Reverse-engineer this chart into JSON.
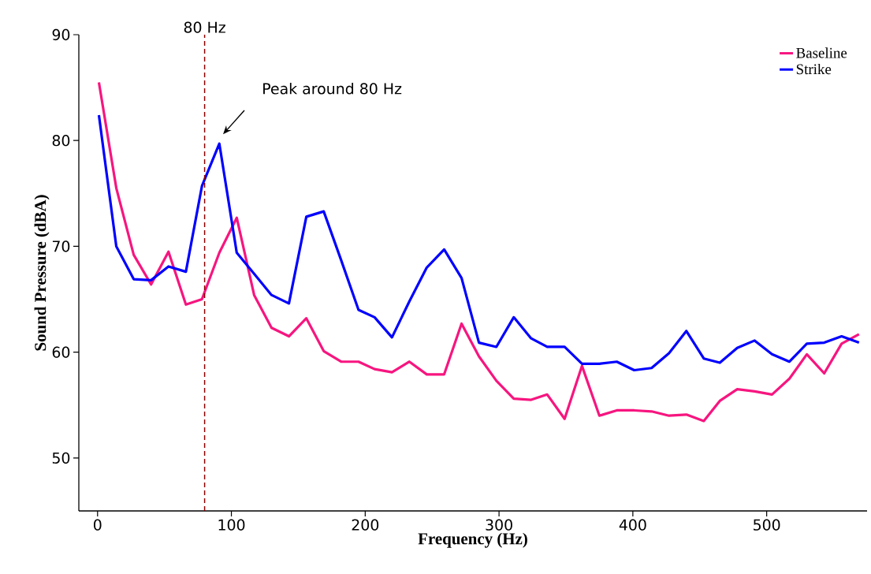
{
  "chart_data": {
    "type": "line",
    "xlabel": "Frequency (Hz)",
    "ylabel": "Sound Pressure (dBA)",
    "x": [
      1,
      14,
      27,
      40,
      53,
      66,
      78,
      91,
      104,
      117,
      130,
      143,
      156,
      169,
      182,
      195,
      207,
      220,
      233,
      246,
      259,
      272,
      285,
      298,
      311,
      324,
      336,
      349,
      362,
      375,
      388,
      401,
      414,
      427,
      440,
      453,
      465,
      478,
      491,
      504,
      517,
      530,
      543,
      556,
      569
    ],
    "series": [
      {
        "name": "Baseline",
        "color": "#f7157f",
        "values": [
          85.5,
          75.5,
          69.2,
          66.4,
          69.5,
          64.5,
          65.0,
          69.4,
          72.7,
          65.4,
          62.3,
          61.5,
          63.2,
          60.1,
          59.1,
          59.1,
          58.4,
          58.1,
          59.1,
          57.9,
          57.9,
          62.7,
          59.6,
          57.3,
          55.6,
          55.5,
          56.0,
          53.7,
          58.7,
          54.0,
          54.5,
          54.5,
          54.4,
          54.0,
          54.1,
          53.5,
          55.4,
          56.5,
          56.3,
          56.0,
          57.5,
          59.8,
          58.0,
          60.8,
          61.7
        ]
      },
      {
        "name": "Strike",
        "color": "#0000ff",
        "values": [
          82.4,
          70.0,
          66.9,
          66.8,
          68.1,
          67.6,
          75.7,
          79.7,
          69.4,
          67.4,
          65.4,
          64.6,
          72.8,
          73.3,
          68.7,
          64.0,
          63.3,
          61.4,
          64.8,
          68.0,
          69.7,
          67.0,
          60.9,
          60.5,
          63.3,
          61.3,
          60.5,
          60.5,
          58.9,
          58.9,
          59.1,
          58.3,
          58.5,
          59.9,
          62.0,
          59.4,
          59.0,
          60.4,
          61.1,
          59.8,
          59.1,
          60.8,
          60.9,
          61.5,
          60.9
        ]
      }
    ],
    "xlim": [
      -14,
      575
    ],
    "ylim": [
      45,
      90
    ],
    "xticks": [
      0,
      100,
      200,
      300,
      400,
      500
    ],
    "yticks": [
      50,
      60,
      70,
      80,
      90
    ],
    "ref_lines": [
      {
        "axis": "x",
        "value": 80,
        "label": "80 Hz",
        "color": "#8b0000",
        "line_style": "dashed"
      }
    ],
    "annotations": [
      "Peak around 80 Hz"
    ],
    "legend": "top right",
    "grid": false,
    "marker": "none",
    "line_style": "solid"
  }
}
